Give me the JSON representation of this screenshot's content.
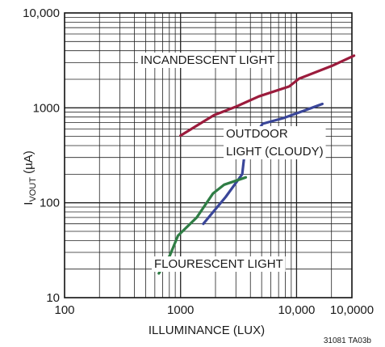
{
  "chart_data": {
    "type": "line",
    "xscale": "log",
    "yscale": "log",
    "xlim": [
      100,
      30000
    ],
    "ylim": [
      10,
      10000
    ],
    "grid": true,
    "xlabel": "ILLUMINANCE (LUX)",
    "ylabel": {
      "main": "I",
      "sub": "VOUT",
      "unit": " (µA)"
    },
    "x_ticks": [
      {
        "value": 100,
        "label": "100"
      },
      {
        "value": 1000,
        "label": "1000"
      },
      {
        "value": 10000,
        "label": "10,000"
      },
      {
        "value": 100000,
        "label": "10,0000"
      }
    ],
    "y_ticks": [
      {
        "value": 10,
        "label": "10"
      },
      {
        "value": 100,
        "label": "100"
      },
      {
        "value": 1000,
        "label": "1000"
      },
      {
        "value": 10000,
        "label": "10,000"
      }
    ],
    "series": [
      {
        "name": "INCANDESCENT LIGHT",
        "color": "#9b1b3c",
        "points": [
          [
            1000,
            510
          ],
          [
            1950,
            840
          ],
          [
            2960,
            1020
          ],
          [
            4730,
            1320
          ],
          [
            8640,
            1680
          ],
          [
            10500,
            2030
          ],
          [
            20200,
            2770
          ],
          [
            31300,
            3550
          ]
        ]
      },
      {
        "name": "OUTDOOR LIGHT (CLOUDY)",
        "color": "#3a4699",
        "points": [
          [
            1570,
            60
          ],
          [
            2450,
            115
          ],
          [
            3400,
            200
          ],
          [
            3600,
            370
          ],
          [
            4240,
            490
          ],
          [
            5100,
            680
          ],
          [
            7700,
            780
          ],
          [
            11500,
            930
          ],
          [
            16700,
            1100
          ]
        ]
      },
      {
        "name": "FLOURESCENT LIGHT",
        "color": "#2f7d45",
        "points": [
          [
            650,
            18
          ],
          [
            810,
            28
          ],
          [
            950,
            45
          ],
          [
            1380,
            70
          ],
          [
            1900,
            125
          ],
          [
            2380,
            155
          ],
          [
            3650,
            185
          ]
        ]
      }
    ],
    "annotations": [
      {
        "text": "INCANDESCENT LIGHT"
      },
      {
        "text": "OUTDOOR"
      },
      {
        "text": "LIGHT (CLOUDY)"
      },
      {
        "text": "FLOURESCENT LIGHT"
      }
    ],
    "figure_code": "31081 TA03b"
  }
}
